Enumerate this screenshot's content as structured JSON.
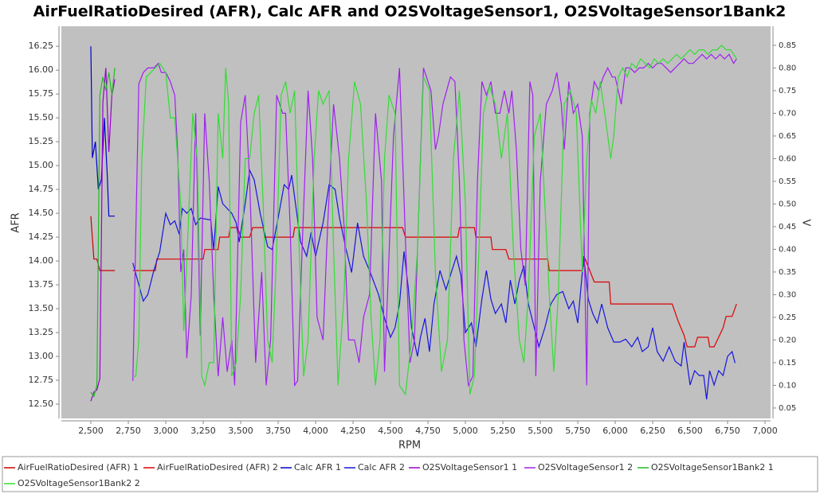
{
  "chart_data": {
    "type": "line",
    "title": "AirFuelRatioDesired (AFR), Calc AFR and O2SVoltageSensor1, O2SVoltageSensor1Bank2",
    "x_label": "RPM",
    "y_label": "AFR",
    "y2_label": "V",
    "xlim": [
      2303,
      7037
    ],
    "ylim": [
      12.35,
      16.46
    ],
    "y2lim": [
      0.027,
      0.892
    ],
    "xticks": [
      {
        "value": 2500,
        "label": "2,500"
      },
      {
        "value": 2750,
        "label": "2,750"
      },
      {
        "value": 3000,
        "label": "3,000"
      },
      {
        "value": 3250,
        "label": "3,250"
      },
      {
        "value": 3500,
        "label": "3,500"
      },
      {
        "value": 3750,
        "label": "3,750"
      },
      {
        "value": 4000,
        "label": "4,000"
      },
      {
        "value": 4250,
        "label": "4,250"
      },
      {
        "value": 4500,
        "label": "4,500"
      },
      {
        "value": 4750,
        "label": "4,750"
      },
      {
        "value": 5000,
        "label": "5,000"
      },
      {
        "value": 5250,
        "label": "5,250"
      },
      {
        "value": 5500,
        "label": "5,500"
      },
      {
        "value": 5750,
        "label": "5,750"
      },
      {
        "value": 6000,
        "label": "6,000"
      },
      {
        "value": 6250,
        "label": "6,250"
      },
      {
        "value": 6500,
        "label": "6,500"
      },
      {
        "value": 6750,
        "label": "6,750"
      },
      {
        "value": 7000,
        "label": "7,000"
      }
    ],
    "yticks": [
      {
        "value": 12.5,
        "label": "12.50"
      },
      12.75,
      {
        "value": 13,
        "label": "13.00"
      },
      13.25,
      {
        "value": 13.5,
        "label": "13.50"
      },
      13.75,
      {
        "value": 14,
        "label": "14.00"
      },
      14.25,
      {
        "value": 14.5,
        "label": "14.50"
      },
      14.75,
      {
        "value": 15,
        "label": "15.00"
      },
      15.25,
      {
        "value": 15.5,
        "label": "15.50"
      },
      15.75,
      {
        "value": 16,
        "label": "16.00"
      },
      16.25
    ],
    "y2ticks": [
      0.05,
      {
        "value": 0.1,
        "label": "0.10"
      },
      0.15,
      {
        "value": 0.2,
        "label": "0.20"
      },
      0.25,
      {
        "value": 0.3,
        "label": "0.30"
      },
      0.35,
      {
        "value": 0.4,
        "label": "0.40"
      },
      0.45,
      {
        "value": 0.5,
        "label": "0.50"
      },
      0.55,
      {
        "value": 0.6,
        "label": "0.60"
      },
      0.65,
      {
        "value": 0.7,
        "label": "0.70"
      },
      0.75,
      {
        "value": 0.8,
        "label": "0.80"
      },
      0.85
    ],
    "grid": false,
    "series": [
      {
        "name": "AirFuelRatioDesired (AFR) 1",
        "color": "#cc0000",
        "x": [
          2500,
          2520,
          2540,
          2560,
          2600,
          2660
        ],
        "values": [
          14.47,
          14.02,
          14.02,
          13.9,
          13.9,
          13.9
        ]
      },
      {
        "name": "AirFuelRatioDesired (AFR) 2",
        "color": "#dd0000",
        "x": [
          2780,
          2930,
          2940,
          3250,
          3260,
          3350,
          3360,
          3420,
          3430,
          3480,
          3500,
          3560,
          3580,
          3650,
          3660,
          3850,
          3860,
          4580,
          4600,
          4950,
          4960,
          5060,
          5070,
          5170,
          5180,
          5270,
          5290,
          5550,
          5560,
          5780,
          5800,
          5830,
          5860,
          5960,
          5970,
          6380,
          6420,
          6460,
          6480,
          6530,
          6550,
          6620,
          6630,
          6660,
          6690,
          6720,
          6740,
          6780,
          6810
        ],
        "values": [
          13.9,
          13.9,
          14.02,
          14.02,
          14.12,
          14.12,
          14.25,
          14.25,
          14.35,
          14.35,
          14.25,
          14.25,
          14.35,
          14.35,
          14.25,
          14.25,
          14.35,
          14.35,
          14.25,
          14.25,
          14.35,
          14.35,
          14.25,
          14.25,
          14.12,
          14.12,
          14.02,
          14.02,
          13.9,
          13.9,
          14.02,
          13.9,
          13.78,
          13.78,
          13.55,
          13.55,
          13.37,
          13.22,
          13.1,
          13.1,
          13.2,
          13.2,
          13.1,
          13.1,
          13.2,
          13.3,
          13.42,
          13.42,
          13.55
        ]
      },
      {
        "name": "Calc AFR 1",
        "color": "#0000cc",
        "x": [
          2500,
          2510,
          2530,
          2550,
          2570,
          2590,
          2610,
          2620,
          2660
        ],
        "values": [
          16.25,
          15.08,
          15.25,
          14.75,
          14.85,
          15.5,
          14.88,
          14.47,
          14.47
        ]
      },
      {
        "name": "Calc AFR 2",
        "color": "#1515e0",
        "x": [
          2780,
          2820,
          2850,
          2880,
          2920,
          2960,
          3000,
          3030,
          3060,
          3090,
          3110,
          3140,
          3170,
          3200,
          3230,
          3300,
          3320,
          3350,
          3380,
          3440,
          3470,
          3490,
          3530,
          3560,
          3590,
          3630,
          3680,
          3710,
          3750,
          3790,
          3820,
          3840,
          3870,
          3900,
          3940,
          3970,
          4000,
          4050,
          4090,
          4130,
          4160,
          4200,
          4240,
          4280,
          4320,
          4360,
          4420,
          4460,
          4500,
          4530,
          4560,
          4590,
          4620,
          4640,
          4680,
          4700,
          4730,
          4760,
          4790,
          4830,
          4870,
          4900,
          4940,
          4970,
          5000,
          5040,
          5070,
          5110,
          5140,
          5170,
          5200,
          5240,
          5270,
          5300,
          5330,
          5360,
          5390,
          5420,
          5460,
          5490,
          5530,
          5570,
          5610,
          5650,
          5690,
          5720,
          5750,
          5790,
          5820,
          5850,
          5880,
          5910,
          5950,
          5990,
          6030,
          6070,
          6110,
          6150,
          6180,
          6220,
          6250,
          6280,
          6320,
          6360,
          6400,
          6440,
          6460,
          6500,
          6530,
          6560,
          6590,
          6610,
          6630,
          6660,
          6690,
          6720,
          6750,
          6780,
          6800
        ],
        "values": [
          13.98,
          13.75,
          13.58,
          13.65,
          13.9,
          14.1,
          14.5,
          14.38,
          14.42,
          14.28,
          14.55,
          14.5,
          14.55,
          14.38,
          14.45,
          14.43,
          14.12,
          14.78,
          14.6,
          14.5,
          14.4,
          14.2,
          14.6,
          14.95,
          14.85,
          14.5,
          14.15,
          14.12,
          14.45,
          14.8,
          14.75,
          14.9,
          14.55,
          14.2,
          14.05,
          14.3,
          14.05,
          14.4,
          14.8,
          14.75,
          14.45,
          14.15,
          13.88,
          14.4,
          14.05,
          13.9,
          13.65,
          13.4,
          13.2,
          13.3,
          13.55,
          14.1,
          13.7,
          13.3,
          13.0,
          13.2,
          13.4,
          13.05,
          13.55,
          13.9,
          13.7,
          13.85,
          14.05,
          13.85,
          13.25,
          13.35,
          13.1,
          13.6,
          13.9,
          13.6,
          13.45,
          13.55,
          13.35,
          13.8,
          13.55,
          13.8,
          13.95,
          13.55,
          13.3,
          13.1,
          13.3,
          13.55,
          13.65,
          13.68,
          13.5,
          13.58,
          13.35,
          14.05,
          13.6,
          13.45,
          13.35,
          13.55,
          13.3,
          13.15,
          13.15,
          13.18,
          13.1,
          13.2,
          13.05,
          13.1,
          13.3,
          13.05,
          12.95,
          13.1,
          12.95,
          12.9,
          13.15,
          12.7,
          12.85,
          12.8,
          12.8,
          12.55,
          12.85,
          12.7,
          12.85,
          12.8,
          13.0,
          13.05,
          12.93
        ]
      },
      {
        "name": "O2SVoltageSensor1 1",
        "color": "#9900cc",
        "axis": "y2",
        "x": [
          2500,
          2520,
          2540,
          2560,
          2580,
          2600,
          2620,
          2640,
          2660
        ],
        "values": [
          0.065,
          0.085,
          0.09,
          0.115,
          0.725,
          0.8,
          0.615,
          0.74,
          0.775
        ]
      },
      {
        "name": "O2SVoltageSensor1 2",
        "color": "#a020f0",
        "axis": "y2",
        "x": [
          2780,
          2820,
          2850,
          2880,
          2920,
          2950,
          2970,
          3000,
          3030,
          3060,
          3080,
          3100,
          3120,
          3140,
          3170,
          3200,
          3230,
          3260,
          3290,
          3320,
          3350,
          3380,
          3410,
          3440,
          3460,
          3500,
          3530,
          3560,
          3600,
          3640,
          3670,
          3700,
          3740,
          3780,
          3800,
          3830,
          3860,
          3880,
          3910,
          3950,
          3980,
          4010,
          4050,
          4080,
          4120,
          4160,
          4190,
          4220,
          4260,
          4290,
          4320,
          4360,
          4400,
          4440,
          4460,
          4480,
          4520,
          4560,
          4600,
          4630,
          4660,
          4690,
          4720,
          4740,
          4770,
          4800,
          4820,
          4850,
          4900,
          4930,
          4960,
          4990,
          5020,
          5050,
          5080,
          5110,
          5140,
          5170,
          5200,
          5230,
          5260,
          5290,
          5310,
          5340,
          5370,
          5400,
          5430,
          5450,
          5470,
          5500,
          5540,
          5580,
          5610,
          5640,
          5660,
          5690,
          5720,
          5750,
          5780,
          5810,
          5830,
          5860,
          5890,
          5920,
          5950,
          5980,
          6000,
          6040,
          6070,
          6100,
          6130,
          6160,
          6190,
          6220,
          6250,
          6280,
          6310,
          6340,
          6370,
          6400,
          6430,
          6460,
          6490,
          6520,
          6550,
          6580,
          6610,
          6640,
          6670,
          6700,
          6730,
          6760,
          6790,
          6810
        ],
        "values": [
          0.11,
          0.765,
          0.79,
          0.8,
          0.8,
          0.81,
          0.79,
          0.79,
          0.77,
          0.74,
          0.61,
          0.35,
          0.4,
          0.16,
          0.3,
          0.7,
          0.21,
          0.7,
          0.55,
          0.3,
          0.12,
          0.25,
          0.13,
          0.2,
          0.1,
          0.68,
          0.74,
          0.55,
          0.15,
          0.35,
          0.1,
          0.2,
          0.74,
          0.7,
          0.7,
          0.45,
          0.1,
          0.11,
          0.4,
          0.75,
          0.6,
          0.25,
          0.2,
          0.45,
          0.72,
          0.6,
          0.45,
          0.2,
          0.2,
          0.15,
          0.25,
          0.3,
          0.7,
          0.55,
          0.13,
          0.3,
          0.65,
          0.8,
          0.42,
          0.15,
          0.2,
          0.5,
          0.8,
          0.78,
          0.75,
          0.62,
          0.65,
          0.72,
          0.78,
          0.77,
          0.55,
          0.2,
          0.1,
          0.12,
          0.55,
          0.77,
          0.74,
          0.77,
          0.7,
          0.7,
          0.75,
          0.7,
          0.75,
          0.62,
          0.4,
          0.32,
          0.77,
          0.74,
          0.12,
          0.55,
          0.72,
          0.75,
          0.79,
          0.72,
          0.62,
          0.77,
          0.7,
          0.72,
          0.65,
          0.1,
          0.7,
          0.77,
          0.75,
          0.78,
          0.8,
          0.78,
          0.78,
          0.72,
          0.8,
          0.8,
          0.79,
          0.8,
          0.8,
          0.81,
          0.8,
          0.81,
          0.81,
          0.8,
          0.79,
          0.8,
          0.81,
          0.82,
          0.81,
          0.81,
          0.82,
          0.83,
          0.82,
          0.83,
          0.82,
          0.83,
          0.82,
          0.83,
          0.81,
          0.82
        ]
      },
      {
        "name": "O2SVoltageSensor1Bank2 1",
        "color": "#22bb22",
        "axis": "y2",
        "x": [
          2500,
          2520,
          2540,
          2560,
          2580,
          2600,
          2620,
          2640,
          2660
        ],
        "values": [
          0.085,
          0.075,
          0.1,
          0.74,
          0.78,
          0.75,
          0.79,
          0.74,
          0.8
        ]
      },
      {
        "name": "O2SVoltageSensor1Bank2 2",
        "color": "#33dd33",
        "axis": "y2",
        "x": [
          2780,
          2800,
          2820,
          2840,
          2870,
          2900,
          2930,
          2960,
          3000,
          3030,
          3060,
          3100,
          3120,
          3150,
          3180,
          3210,
          3240,
          3260,
          3290,
          3320,
          3350,
          3380,
          3400,
          3420,
          3440,
          3470,
          3500,
          3530,
          3560,
          3590,
          3620,
          3650,
          3680,
          3710,
          3740,
          3770,
          3800,
          3830,
          3860,
          3890,
          3920,
          3950,
          3990,
          4020,
          4050,
          4090,
          4120,
          4150,
          4190,
          4220,
          4260,
          4300,
          4340,
          4370,
          4400,
          4430,
          4460,
          4490,
          4530,
          4560,
          4600,
          4640,
          4680,
          4720,
          4760,
          4800,
          4840,
          4880,
          4920,
          4960,
          5000,
          5030,
          5060,
          5090,
          5120,
          5160,
          5200,
          5240,
          5280,
          5320,
          5360,
          5390,
          5420,
          5460,
          5500,
          5530,
          5560,
          5590,
          5620,
          5660,
          5700,
          5740,
          5780,
          5810,
          5840,
          5870,
          5900,
          5930,
          5970,
          5990,
          6020,
          6050,
          6080,
          6110,
          6140,
          6170,
          6200,
          6230,
          6260,
          6290,
          6320,
          6350,
          6380,
          6410,
          6440,
          6470,
          6500,
          6530,
          6560,
          6590,
          6620,
          6650,
          6680,
          6710,
          6740,
          6770,
          6790,
          6810
        ],
        "values": [
          0.12,
          0.12,
          0.2,
          0.6,
          0.78,
          0.79,
          0.8,
          0.81,
          0.79,
          0.69,
          0.69,
          0.5,
          0.22,
          0.45,
          0.7,
          0.6,
          0.12,
          0.1,
          0.15,
          0.15,
          0.7,
          0.6,
          0.8,
          0.72,
          0.12,
          0.15,
          0.3,
          0.6,
          0.6,
          0.7,
          0.74,
          0.5,
          0.2,
          0.15,
          0.4,
          0.74,
          0.77,
          0.7,
          0.75,
          0.4,
          0.12,
          0.2,
          0.6,
          0.75,
          0.72,
          0.75,
          0.4,
          0.1,
          0.3,
          0.6,
          0.77,
          0.72,
          0.5,
          0.25,
          0.1,
          0.2,
          0.6,
          0.74,
          0.7,
          0.1,
          0.08,
          0.2,
          0.4,
          0.78,
          0.75,
          0.35,
          0.13,
          0.2,
          0.6,
          0.75,
          0.5,
          0.08,
          0.12,
          0.4,
          0.7,
          0.76,
          0.72,
          0.6,
          0.7,
          0.4,
          0.2,
          0.15,
          0.3,
          0.65,
          0.7,
          0.5,
          0.3,
          0.13,
          0.3,
          0.72,
          0.75,
          0.7,
          0.35,
          0.6,
          0.73,
          0.7,
          0.77,
          0.7,
          0.6,
          0.65,
          0.78,
          0.8,
          0.78,
          0.81,
          0.8,
          0.82,
          0.81,
          0.8,
          0.82,
          0.81,
          0.82,
          0.81,
          0.82,
          0.83,
          0.82,
          0.83,
          0.84,
          0.83,
          0.84,
          0.84,
          0.83,
          0.84,
          0.84,
          0.85,
          0.84,
          0.84,
          0.83,
          0.82
        ]
      }
    ]
  }
}
